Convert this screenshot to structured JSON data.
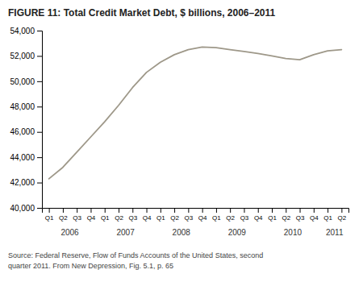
{
  "chart_data": {
    "type": "line",
    "title": "FIGURE 11: Total Credit Market Debt, $ billions, 2006–2011",
    "annotations": [
      "Source: Federal Reserve, Flow of Funds Accounts of the United States, second",
      "quarter 2011. From New Depression, Fig. 5.1, p. 65"
    ],
    "categories": [
      "Q1",
      "Q2",
      "Q3",
      "Q4",
      "Q1",
      "Q2",
      "Q3",
      "Q4",
      "Q1",
      "Q2",
      "Q3",
      "Q4",
      "Q1",
      "Q2",
      "Q3",
      "Q4",
      "Q1",
      "Q2",
      "Q3",
      "Q4",
      "Q1",
      "Q2"
    ],
    "category_groups": [
      "2006",
      "2007",
      "2008",
      "2009",
      "2010",
      "2011"
    ],
    "values": [
      42300,
      43200,
      44400,
      45600,
      46800,
      48100,
      49500,
      50700,
      51500,
      52100,
      52500,
      52700,
      52650,
      52500,
      52350,
      52200,
      52000,
      51800,
      51700,
      52100,
      52400,
      52500
    ],
    "color": "#9e9889",
    "ylim": [
      40000,
      54000
    ],
    "yticks": [
      {
        "value": 40000,
        "label": "40,000"
      },
      {
        "value": 42000,
        "label": "42,000"
      },
      {
        "value": 44000,
        "label": "44,000"
      },
      {
        "value": 46000,
        "label": "46,000"
      },
      {
        "value": 48000,
        "label": "48,000"
      },
      {
        "value": 50000,
        "label": "50,000"
      },
      {
        "value": 52000,
        "label": "52,000"
      },
      {
        "value": 54000,
        "label": "54,000"
      }
    ],
    "grid": false
  }
}
